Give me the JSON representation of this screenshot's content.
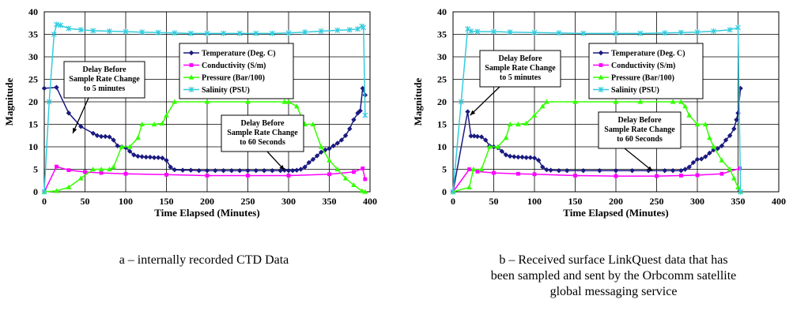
{
  "colors": {
    "temperature": "#1a1a80",
    "conductivity": "#ff00ff",
    "pressure": "#33ff00",
    "salinity": "#33ccdd",
    "grid": "#000000"
  },
  "legend_labels": [
    "Temperature (Deg. C)",
    "Conductivity (S/m)",
    "Pressure (Bar/100)",
    "Salinity (PSU)"
  ],
  "captions": {
    "a": [
      "a – internally recorded CTD Data"
    ],
    "b": [
      "b – Received surface LinkQuest data that has",
      "been sampled and sent by the Orbcomm satellite",
      "global messaging service"
    ]
  },
  "chart_data": [
    {
      "type": "line",
      "xlabel": "Time Elapsed  (Minutes)",
      "ylabel": "Magnitude",
      "xlim": [
        0,
        400
      ],
      "ylim": [
        0,
        40
      ],
      "xticks": [
        0,
        50,
        100,
        150,
        200,
        250,
        300,
        350,
        400
      ],
      "yticks": [
        0,
        5,
        10,
        15,
        20,
        25,
        30,
        35,
        40
      ],
      "grid": true,
      "legend_position": "top-center",
      "annotations": [
        {
          "lines": [
            "Delay Before",
            "Sample Rate Change",
            "to 5 minutes"
          ],
          "points_to": [
            35,
            13
          ]
        },
        {
          "lines": [
            "Delay Before",
            "Sample Rate Change",
            "to 60 Seconds"
          ],
          "points_to": [
            295,
            4.8
          ]
        }
      ],
      "series": [
        {
          "name": "Temperature (Deg. C)",
          "marker": "diamond",
          "x": [
            0,
            15,
            30,
            45,
            60,
            65,
            70,
            75,
            80,
            85,
            90,
            95,
            100,
            105,
            110,
            115,
            120,
            125,
            130,
            135,
            140,
            145,
            150,
            155,
            160,
            170,
            180,
            190,
            200,
            210,
            220,
            230,
            240,
            250,
            260,
            270,
            280,
            290,
            295,
            300,
            305,
            310,
            315,
            320,
            325,
            330,
            335,
            340,
            345,
            350,
            355,
            360,
            365,
            370,
            375,
            380,
            385,
            388,
            391,
            394
          ],
          "y": [
            23,
            23.2,
            17.5,
            14.5,
            13,
            12.5,
            12.3,
            12.3,
            12.2,
            11.5,
            10.2,
            10,
            9.8,
            9,
            8.2,
            7.9,
            7.8,
            7.7,
            7.7,
            7.6,
            7.6,
            7.5,
            7,
            5.5,
            4.9,
            4.8,
            4.8,
            4.7,
            4.7,
            4.7,
            4.7,
            4.7,
            4.7,
            4.7,
            4.7,
            4.7,
            4.7,
            4.7,
            4.8,
            4.7,
            4.7,
            4.8,
            5,
            5.5,
            6.5,
            7.2,
            8,
            8.8,
            9.3,
            9.6,
            10.2,
            10.8,
            11.5,
            12.5,
            14,
            16,
            17.5,
            18,
            23,
            21.5
          ]
        },
        {
          "name": "Conductivity (S/m)",
          "marker": "square",
          "x": [
            0,
            15,
            30,
            50,
            70,
            100,
            150,
            200,
            250,
            300,
            350,
            380,
            391,
            394
          ],
          "y": [
            0,
            5.6,
            4.8,
            4.4,
            4.2,
            4,
            3.8,
            3.6,
            3.6,
            3.6,
            3.9,
            4.4,
            5.2,
            2.8
          ]
        },
        {
          "name": "Pressure (Bar/100)",
          "marker": "triangle",
          "x": [
            0,
            15,
            30,
            45,
            60,
            70,
            80,
            85,
            95,
            105,
            115,
            120,
            135,
            145,
            150,
            160,
            200,
            250,
            295,
            300,
            310,
            320,
            330,
            340,
            350,
            360,
            370,
            380,
            390,
            394
          ],
          "y": [
            0,
            0.2,
            1,
            3,
            5,
            5,
            5,
            5.5,
            10,
            10,
            12,
            15,
            15,
            15.2,
            17,
            20,
            20,
            20,
            20,
            20,
            19,
            15,
            15,
            10,
            7,
            5,
            3,
            1.5,
            0.2,
            0
          ]
        },
        {
          "name": "Salinity (PSU)",
          "marker": "star",
          "x": [
            0,
            6,
            12,
            15,
            20,
            30,
            45,
            60,
            80,
            100,
            120,
            140,
            160,
            180,
            200,
            220,
            240,
            260,
            280,
            300,
            320,
            340,
            360,
            375,
            385,
            390,
            392,
            394
          ],
          "y": [
            0,
            20,
            35,
            37.2,
            37,
            36.3,
            36,
            35.8,
            35.7,
            35.6,
            35.5,
            35.4,
            35.3,
            35.2,
            35.2,
            35.2,
            35.2,
            35.2,
            35.2,
            35.3,
            35.5,
            35.7,
            35.9,
            36,
            36.2,
            36.8,
            36.5,
            17
          ]
        }
      ]
    },
    {
      "type": "line",
      "xlabel": "Time Elapsed (Minutes)",
      "ylabel": "Magnitude",
      "xlim": [
        0,
        400
      ],
      "ylim": [
        0,
        40
      ],
      "xticks": [
        0,
        50,
        100,
        150,
        200,
        250,
        300,
        350,
        400
      ],
      "yticks": [
        0,
        5,
        10,
        15,
        20,
        25,
        30,
        35,
        40
      ],
      "grid": true,
      "legend_position": "top-center",
      "annotations": [
        {
          "lines": [
            "Delay Before",
            "Sample Rate Change",
            "to 5 minutes"
          ],
          "points_to": [
            21,
            17
          ]
        },
        {
          "lines": [
            "Delay Before",
            "Sample Rate Change",
            "to 60 Seconds"
          ],
          "points_to": [
            245,
            4.6
          ]
        }
      ],
      "series": [
        {
          "name": "Temperature (Deg. C)",
          "marker": "diamond",
          "x": [
            0,
            18,
            22,
            26,
            30,
            35,
            40,
            45,
            50,
            55,
            60,
            65,
            70,
            75,
            80,
            85,
            90,
            95,
            100,
            105,
            110,
            115,
            120,
            130,
            140,
            160,
            180,
            200,
            220,
            240,
            260,
            270,
            280,
            285,
            290,
            295,
            300,
            305,
            310,
            315,
            320,
            325,
            330,
            335,
            340,
            345,
            348,
            350,
            353
          ],
          "y": [
            0,
            17.8,
            12.4,
            12.4,
            12.3,
            12.2,
            11.5,
            10.2,
            10,
            9.8,
            9,
            8.2,
            7.9,
            7.8,
            7.7,
            7.7,
            7.6,
            7.6,
            7.5,
            7,
            5.5,
            4.9,
            4.8,
            4.7,
            4.7,
            4.7,
            4.7,
            4.7,
            4.7,
            4.7,
            4.7,
            4.7,
            4.7,
            5,
            5.5,
            6.5,
            7.2,
            7.3,
            7.8,
            8.6,
            9.3,
            9.6,
            10.2,
            11.5,
            12.5,
            14,
            16,
            17.5,
            23
          ]
        },
        {
          "name": "Conductivity (S/m)",
          "marker": "square",
          "x": [
            0,
            20,
            30,
            50,
            80,
            100,
            150,
            200,
            250,
            280,
            300,
            330,
            352
          ],
          "y": [
            0,
            5,
            4.5,
            4.2,
            4,
            3.9,
            3.6,
            3.5,
            3.5,
            3.6,
            3.7,
            4,
            5.2
          ]
        },
        {
          "name": "Pressure (Bar/100)",
          "marker": "triangle",
          "x": [
            0,
            20,
            25,
            35,
            45,
            55,
            65,
            70,
            80,
            90,
            100,
            110,
            115,
            150,
            200,
            230,
            270,
            280,
            285,
            290,
            300,
            310,
            315,
            320,
            330,
            340,
            345,
            350,
            353
          ],
          "y": [
            0,
            1,
            5,
            5,
            10,
            10,
            12,
            15,
            15,
            15.2,
            17,
            19,
            20,
            20,
            20,
            20,
            20,
            20,
            19,
            17,
            15,
            15,
            12,
            10,
            7,
            5,
            3,
            1,
            0
          ]
        },
        {
          "name": "Salinity (PSU)",
          "marker": "star",
          "x": [
            0,
            10,
            18,
            22,
            30,
            50,
            70,
            100,
            130,
            160,
            200,
            230,
            260,
            280,
            300,
            320,
            340,
            350,
            353
          ],
          "y": [
            0,
            20,
            36.2,
            35.7,
            35.6,
            35.6,
            35.5,
            35.4,
            35.3,
            35.2,
            35.2,
            35.2,
            35.3,
            35.4,
            35.5,
            35.7,
            36,
            36.5,
            0
          ]
        }
      ]
    }
  ]
}
